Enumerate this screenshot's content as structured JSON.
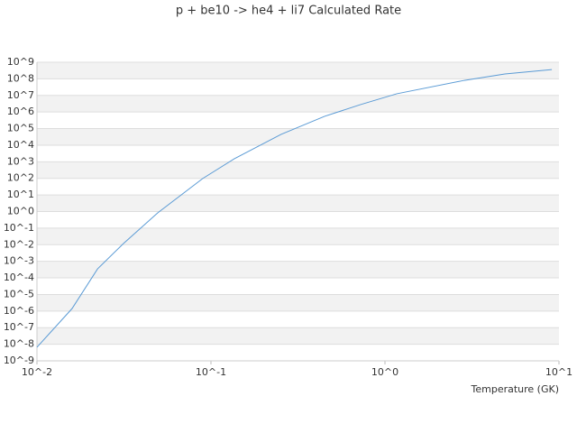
{
  "chart_data": {
    "type": "line",
    "title": "p + be10 -> he4 + li7 Calculated Rate",
    "x_label": "Temperature (GK)",
    "x_scale": "log",
    "y_scale": "log",
    "xlim": [
      0.01,
      10
    ],
    "ylim": [
      1e-09,
      1000000000.0
    ],
    "xticks": [
      {
        "value": 0.01,
        "label": "10^-2"
      },
      {
        "value": 0.1,
        "label": "10^-1"
      },
      {
        "value": 1,
        "label": "10^0"
      },
      {
        "value": 10,
        "label": "10^1"
      }
    ],
    "yticks": [
      {
        "value": 1e-09,
        "label": "10^-9"
      },
      {
        "value": 1e-08,
        "label": "10^-8"
      },
      {
        "value": 1e-07,
        "label": "10^-7"
      },
      {
        "value": 1e-06,
        "label": "10^-6"
      },
      {
        "value": 1e-05,
        "label": "10^-5"
      },
      {
        "value": 0.0001,
        "label": "10^-4"
      },
      {
        "value": 0.001,
        "label": "10^-3"
      },
      {
        "value": 0.01,
        "label": "10^-2"
      },
      {
        "value": 0.1,
        "label": "10^-1"
      },
      {
        "value": 1,
        "label": "10^0"
      },
      {
        "value": 10,
        "label": "10^1"
      },
      {
        "value": 100,
        "label": "10^2"
      },
      {
        "value": 1000,
        "label": "10^3"
      },
      {
        "value": 10000,
        "label": "10^4"
      },
      {
        "value": 100000,
        "label": "10^5"
      },
      {
        "value": 1000000,
        "label": "10^6"
      },
      {
        "value": 10000000,
        "label": "10^7"
      },
      {
        "value": 100000000,
        "label": "10^8"
      },
      {
        "value": 1000000000,
        "label": "10^9"
      }
    ],
    "grid": true,
    "banded": true,
    "x": [
      0.01,
      0.0159,
      0.0223,
      0.0314,
      0.0494,
      0.0897,
      0.136,
      0.253,
      0.45,
      0.724,
      1.17,
      2.86,
      4.89,
      9.1
    ],
    "series": [
      {
        "color": "#5b9bd5",
        "values": [
          6.6e-09,
          1.4e-06,
          0.00035,
          0.0117,
          0.83,
          98,
          1500,
          45000,
          550000,
          2800000,
          12600000,
          81000000,
          195000000,
          360000000
        ]
      }
    ]
  }
}
